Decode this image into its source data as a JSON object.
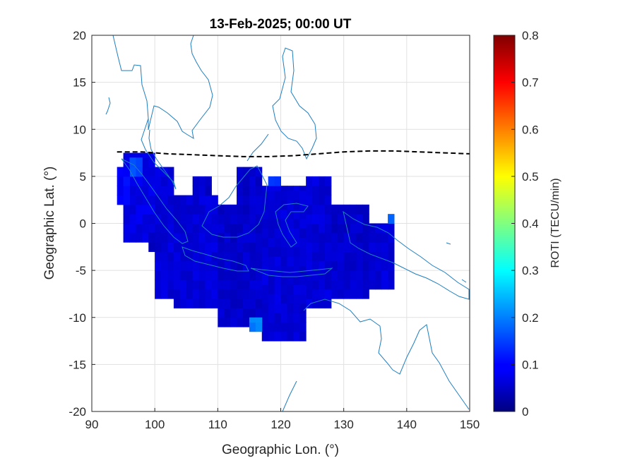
{
  "chart_data": {
    "type": "heatmap",
    "title": "13-Feb-2025; 00:00 UT",
    "xlabel": "Geographic Lon. (°)",
    "ylabel": "Geographic Lat. (°)",
    "xlim": [
      90,
      150
    ],
    "ylim": [
      -20,
      20
    ],
    "xticks": [
      "90",
      "100",
      "110",
      "120",
      "130",
      "140",
      "150"
    ],
    "yticks": [
      "20",
      "15",
      "10",
      "5",
      "0",
      "-5",
      "-10",
      "-15",
      "-20"
    ],
    "grid": true,
    "colorbar": {
      "label": "ROTI (TECU/min)",
      "range": [
        0,
        0.8
      ],
      "ticks": [
        "0",
        "0.1",
        "0.2",
        "0.3",
        "0.4",
        "0.5",
        "0.6",
        "0.7",
        "0.8"
      ],
      "colormap": "jet"
    },
    "magnetic_equator": {
      "style": "dashed",
      "color": "#000000",
      "points": [
        [
          94,
          7.6
        ],
        [
          98,
          7.6
        ],
        [
          102,
          7.4
        ],
        [
          106,
          7.3
        ],
        [
          110,
          7.2
        ],
        [
          114,
          7.1
        ],
        [
          118,
          7.1
        ],
        [
          122,
          7.2
        ],
        [
          126,
          7.4
        ],
        [
          130,
          7.6
        ],
        [
          134,
          7.7
        ],
        [
          138,
          7.7
        ],
        [
          142,
          7.6
        ],
        [
          146,
          7.5
        ],
        [
          150,
          7.4
        ]
      ]
    },
    "roti_cells": [
      {
        "lon": [
          95,
          100
        ],
        "lat": [
          -2,
          7.5
        ],
        "value": 0.08
      },
      {
        "lon": [
          96,
          98
        ],
        "lat": [
          5,
          7
        ],
        "value": 0.16
      },
      {
        "lon": [
          94,
          96
        ],
        "lat": [
          2,
          6
        ],
        "value": 0.1
      },
      {
        "lon": [
          100,
          103
        ],
        "lat": [
          -8,
          6
        ],
        "value": 0.07
      },
      {
        "lon": [
          103,
          110
        ],
        "lat": [
          -9,
          3
        ],
        "value": 0.07
      },
      {
        "lon": [
          106,
          109
        ],
        "lat": [
          3,
          5
        ],
        "value": 0.06
      },
      {
        "lon": [
          110,
          117
        ],
        "lat": [
          -11,
          2
        ],
        "value": 0.06
      },
      {
        "lon": [
          113,
          117
        ],
        "lat": [
          2,
          6
        ],
        "value": 0.06
      },
      {
        "lon": [
          117,
          124
        ],
        "lat": [
          -12.5,
          4
        ],
        "value": 0.07
      },
      {
        "lon": [
          118,
          120
        ],
        "lat": [
          4,
          5
        ],
        "value": 0.13
      },
      {
        "lon": [
          124,
          128
        ],
        "lat": [
          -9,
          5
        ],
        "value": 0.07
      },
      {
        "lon": [
          128,
          134
        ],
        "lat": [
          -8,
          2
        ],
        "value": 0.06
      },
      {
        "lon": [
          134,
          138
        ],
        "lat": [
          -7,
          0
        ],
        "value": 0.07
      },
      {
        "lon": [
          115,
          117
        ],
        "lat": [
          -11.5,
          -10
        ],
        "value": 0.2
      },
      {
        "lon": [
          99,
          102
        ],
        "lat": [
          -3,
          -1
        ],
        "value": 0.05
      },
      {
        "lon": [
          137,
          138
        ],
        "lat": [
          0,
          1
        ],
        "value": 0.18
      }
    ],
    "coastline_color": "#1f7fc0"
  }
}
